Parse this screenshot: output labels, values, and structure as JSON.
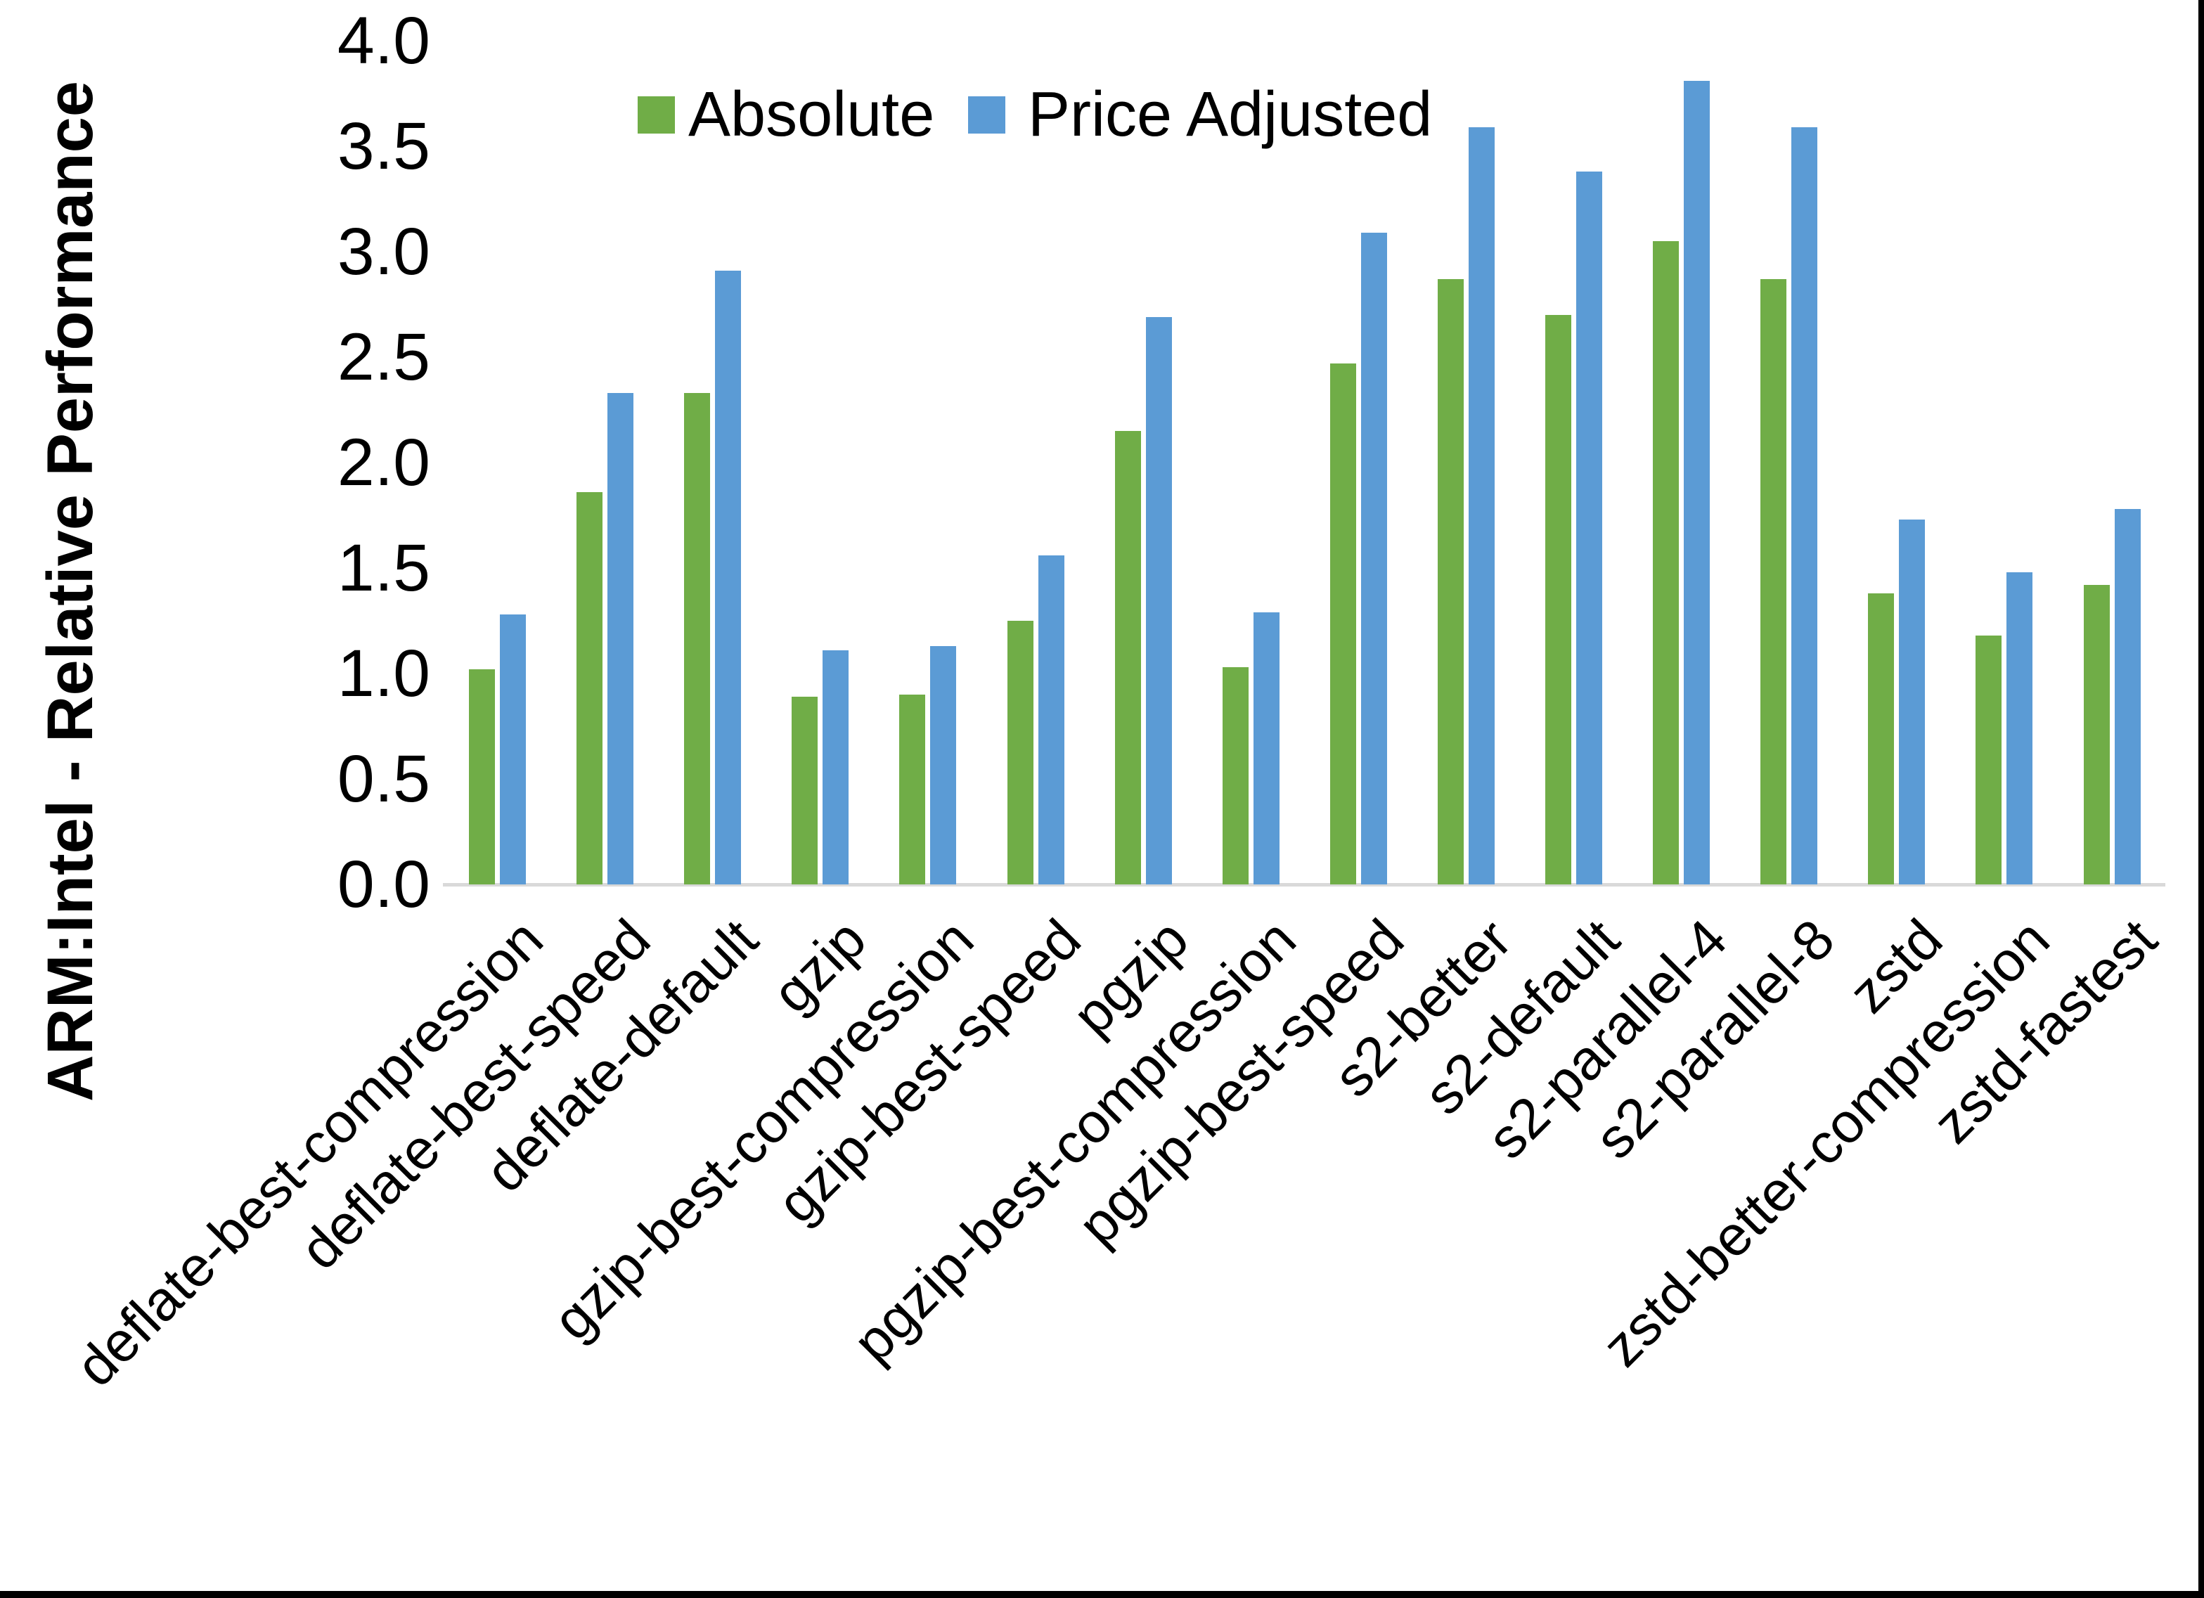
{
  "figure": {
    "ylabel": "ARM:Intel - Relative Performance",
    "y_ticks": [
      "4.0",
      "3.5",
      "3.0",
      "2.5",
      "2.0",
      "1.5",
      "1.0",
      "0.5",
      "0.0"
    ],
    "axis_line_color": "#D9D9D9",
    "text_color": "#000000",
    "border_color": "#000000",
    "background_color": "#FFFFFF"
  },
  "legend": {
    "items": [
      {
        "label": "Absolute",
        "color": "#70AD47"
      },
      {
        "label": "Price Adjusted",
        "color": "#5B9BD5"
      }
    ]
  },
  "chart_data": {
    "type": "bar",
    "title": "",
    "xlabel": "",
    "ylabel": "ARM:Intel - Relative Performance",
    "ylim": [
      0.0,
      4.0
    ],
    "y_tick_step": 0.5,
    "grid": false,
    "legend_position": "top-center",
    "categories": [
      "deflate-best-compression",
      "deflate-best-speed",
      "deflate-default",
      "gzip",
      "gzip-best-compression",
      "gzip-best-speed",
      "pgzip",
      "pgzip-best-compression",
      "pgzip-best-speed",
      "s2-better",
      "s2-default",
      "s2-parallel-4",
      "s2-parallel-8",
      "zstd",
      "zstd-better-compression",
      "zstd-fastest"
    ],
    "series": [
      {
        "name": "Absolute",
        "color": "#70AD47",
        "values": [
          1.02,
          1.86,
          2.33,
          0.89,
          0.9,
          1.25,
          2.15,
          1.03,
          2.47,
          2.87,
          2.7,
          3.05,
          2.87,
          1.38,
          1.18,
          1.42
        ]
      },
      {
        "name": "Price Adjusted",
        "color": "#5B9BD5",
        "values": [
          1.28,
          2.33,
          2.91,
          1.11,
          1.13,
          1.56,
          2.69,
          1.29,
          3.09,
          3.59,
          3.38,
          3.81,
          3.59,
          1.73,
          1.48,
          1.78
        ]
      }
    ]
  }
}
